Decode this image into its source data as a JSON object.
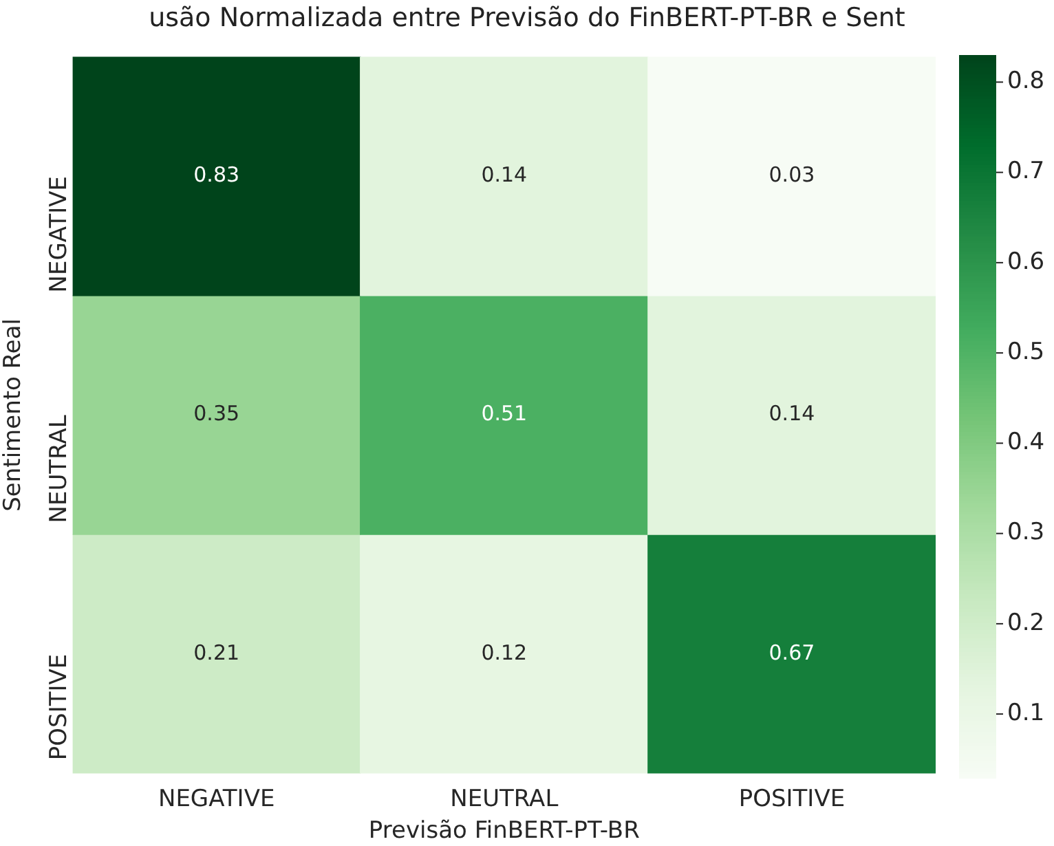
{
  "chart_data": {
    "type": "heatmap",
    "title": "usão Normalizada entre Previsão do FinBERT-PT-BR e Sent",
    "xlabel": "Previsão FinBERT-PT-BR",
    "ylabel": "Sentimento Real",
    "categories": [
      "NEGATIVE",
      "NEUTRAL",
      "POSITIVE"
    ],
    "y_categories": [
      "NEGATIVE",
      "NEUTRAL",
      "POSITIVE"
    ],
    "cells": [
      [
        0.83,
        0.14,
        0.03
      ],
      [
        0.35,
        0.51,
        0.14
      ],
      [
        0.21,
        0.12,
        0.67
      ]
    ],
    "data_labels": true,
    "clim": [
      0.03,
      0.83
    ],
    "cticks": [
      0.1,
      0.2,
      0.3,
      0.4,
      0.5,
      0.6,
      0.7,
      0.8
    ]
  }
}
